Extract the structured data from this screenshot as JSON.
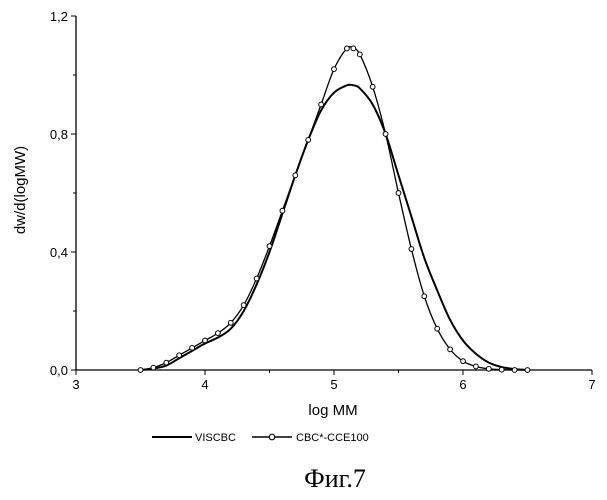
{
  "chart_data": {
    "type": "line",
    "title": "",
    "xlabel": "log MM",
    "ylabel": "dw/d(logMW)",
    "xlim": [
      3,
      7
    ],
    "ylim": [
      0,
      1.2
    ],
    "x_ticks": [
      3,
      4,
      5,
      6,
      7
    ],
    "x_tick_labels": [
      "3",
      "4",
      "5",
      "6",
      "7"
    ],
    "y_ticks": [
      0,
      0.4,
      0.8,
      1.2
    ],
    "y_tick_labels": [
      "0,0",
      "0,4",
      "0,8",
      "1,2"
    ],
    "grid": false,
    "legend_position": "bottom",
    "series": [
      {
        "name": "VISCBC",
        "marker": "none",
        "x": [
          3.5,
          3.6,
          3.7,
          3.8,
          3.9,
          4.0,
          4.1,
          4.2,
          4.3,
          4.4,
          4.5,
          4.6,
          4.7,
          4.8,
          4.9,
          5.0,
          5.1,
          5.15,
          5.2,
          5.3,
          5.4,
          5.5,
          5.6,
          5.7,
          5.8,
          5.9,
          6.0,
          6.1,
          6.2,
          6.3,
          6.4,
          6.5
        ],
        "y": [
          0.0,
          0.005,
          0.015,
          0.04,
          0.065,
          0.09,
          0.11,
          0.14,
          0.2,
          0.29,
          0.4,
          0.53,
          0.66,
          0.78,
          0.88,
          0.94,
          0.965,
          0.965,
          0.955,
          0.9,
          0.8,
          0.66,
          0.52,
          0.38,
          0.27,
          0.17,
          0.1,
          0.055,
          0.025,
          0.01,
          0.003,
          0.0
        ]
      },
      {
        "name": "CBC*-CCE100",
        "marker": "circle",
        "x": [
          3.5,
          3.6,
          3.7,
          3.8,
          3.9,
          4.0,
          4.1,
          4.2,
          4.3,
          4.4,
          4.5,
          4.6,
          4.7,
          4.8,
          4.9,
          5.0,
          5.1,
          5.15,
          5.2,
          5.3,
          5.4,
          5.5,
          5.6,
          5.7,
          5.8,
          5.9,
          6.0,
          6.1,
          6.2,
          6.3,
          6.4,
          6.5
        ],
        "y": [
          0.0,
          0.008,
          0.025,
          0.05,
          0.075,
          0.1,
          0.125,
          0.16,
          0.22,
          0.31,
          0.42,
          0.54,
          0.66,
          0.78,
          0.9,
          1.02,
          1.09,
          1.09,
          1.07,
          0.96,
          0.8,
          0.6,
          0.41,
          0.25,
          0.14,
          0.07,
          0.03,
          0.012,
          0.004,
          0.001,
          0.0,
          0.0
        ]
      }
    ]
  },
  "legend": {
    "items": [
      "VISCBC",
      "CBC*-CCE100"
    ]
  },
  "caption": "Фиг.7"
}
